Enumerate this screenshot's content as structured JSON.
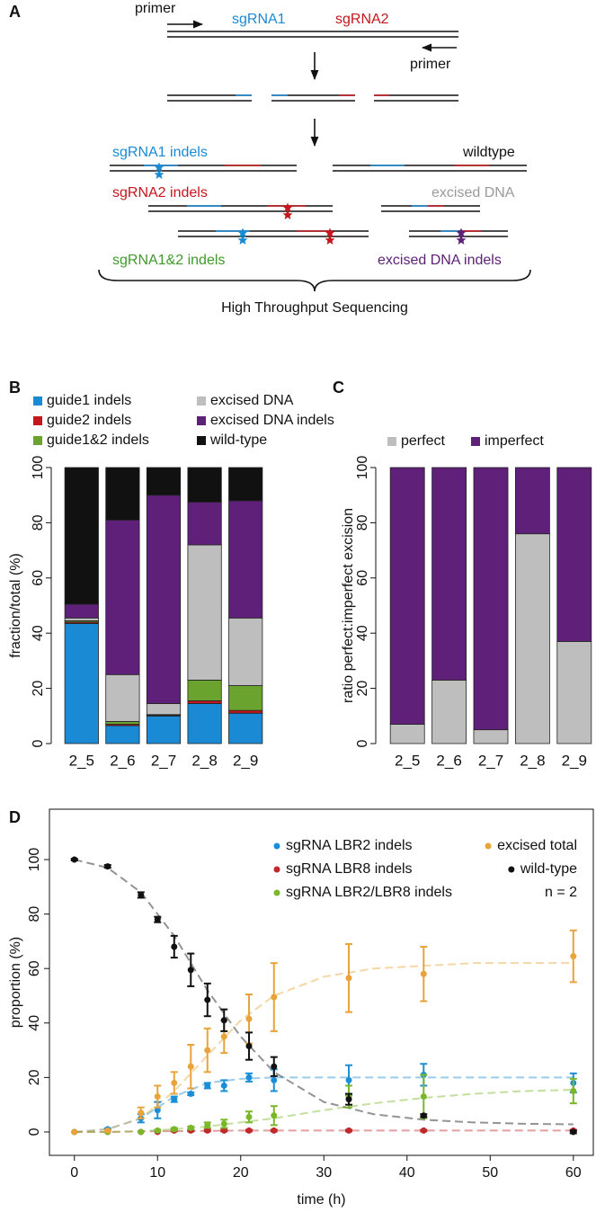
{
  "diagram": {
    "panel_label": "A",
    "primer_forward": "primer",
    "sgrna1": "sgRNA1",
    "sgrna2": "sgRNA2",
    "primer_reverse": "primer",
    "sgrna1_indels": "sgRNA1 indels",
    "wildtype": "wildtype",
    "sgrna2_indels": "sgRNA2 indels",
    "excised_dna": "excised DNA",
    "sgrna12_indels": "sgRNA1&2 indels",
    "excised_dna_indels": "excised DNA indels",
    "sequencing": "High Throughput Sequencing"
  },
  "chart_data": [
    {
      "type": "bar",
      "stacked": true,
      "panel_label": "B",
      "y_label": "fraction/total (%)",
      "categories": [
        "2_5",
        "2_6",
        "2_7",
        "2_8",
        "2_9"
      ],
      "series": [
        {
          "name": "guide1 indels",
          "color": "#1a8ad4",
          "values": [
            43.5,
            6.5,
            10,
            14.5,
            11
          ]
        },
        {
          "name": "guide2 indels",
          "color": "#c4161c",
          "values": [
            0.5,
            0.5,
            0.3,
            1,
            1
          ]
        },
        {
          "name": "guide1&2 indels",
          "color": "#6aa42f",
          "values": [
            0.5,
            1,
            0.2,
            7.5,
            9
          ]
        },
        {
          "name": "excised DNA",
          "color": "#bebebe",
          "values": [
            1,
            17,
            4,
            49,
            24.5
          ]
        },
        {
          "name": "excised DNA indels",
          "color": "#5e2078",
          "values": [
            5,
            56,
            75.5,
            15.5,
            42.5
          ]
        },
        {
          "name": "wild-type",
          "color": "#111111",
          "values": [
            49.5,
            19,
            10,
            12.5,
            12
          ]
        }
      ],
      "ylim": [
        0,
        100
      ],
      "yticks": [
        0,
        20,
        40,
        60,
        80,
        100
      ]
    },
    {
      "type": "bar",
      "stacked": true,
      "panel_label": "C",
      "y_label": "ratio perfect:imperfect excision",
      "categories": [
        "2_5",
        "2_6",
        "2_7",
        "2_8",
        "2_9"
      ],
      "series": [
        {
          "name": "perfect",
          "color": "#bebebe",
          "values": [
            7,
            23,
            5,
            76,
            37
          ]
        },
        {
          "name": "imperfect",
          "color": "#5e2078",
          "values": [
            93,
            77,
            95,
            24,
            63
          ]
        }
      ],
      "ylim": [
        0,
        100
      ],
      "yticks": [
        0,
        20,
        40,
        60,
        80,
        100
      ]
    },
    {
      "type": "scatter",
      "panel_label": "D",
      "x_label": "time (h)",
      "y_label": "proportion (%)",
      "annotation": "n = 2",
      "x": [
        0,
        4,
        8,
        10,
        12,
        14,
        16,
        18,
        21,
        24,
        33,
        42,
        60
      ],
      "fit_x": [
        0,
        4,
        8,
        12,
        16,
        20,
        24,
        30,
        36,
        42,
        48,
        54,
        60
      ],
      "series": [
        {
          "name": "sgRNA LBR2 indels",
          "color": "#1a8fd8",
          "values": [
            0,
            1,
            5,
            8,
            12,
            14,
            17,
            17,
            20,
            19,
            19,
            21,
            18
          ],
          "errors": [
            0,
            0.3,
            1.5,
            3,
            1,
            0.5,
            1,
            2,
            1.5,
            4,
            5.5,
            4,
            3.5
          ],
          "fit": [
            0,
            1,
            5,
            13,
            18,
            19.5,
            20,
            20,
            20,
            20,
            20,
            20,
            20
          ]
        },
        {
          "name": "sgRNA LBR8 indels",
          "color": "#c0282a",
          "values": [
            0,
            0,
            0,
            0,
            0.5,
            0.5,
            0.5,
            0.5,
            0.5,
            0.5,
            0.5,
            0.5,
            0.5
          ],
          "errors": [
            0,
            0,
            0,
            0,
            0.3,
            0.3,
            0.3,
            0.3,
            0.3,
            0.3,
            0.3,
            0.3,
            0.3
          ],
          "fit": [
            0,
            0,
            0.2,
            0.3,
            0.4,
            0.5,
            0.5,
            0.5,
            0.5,
            0.5,
            0.5,
            0.5,
            0.5
          ]
        },
        {
          "name": "sgRNA LBR2/LBR8 indels",
          "color": "#7ab829",
          "values": [
            0,
            0,
            0,
            0.5,
            1,
            1.5,
            2.5,
            3,
            5.5,
            6,
            13,
            13,
            15
          ],
          "errors": [
            0,
            0,
            0,
            0.3,
            0.5,
            0.5,
            1,
            1.5,
            2,
            3.5,
            4,
            8,
            4.5
          ],
          "fit": [
            0,
            0,
            0.3,
            1,
            2,
            3.5,
            5,
            8,
            10.5,
            12.5,
            14,
            15,
            15.5
          ]
        },
        {
          "name": "excised total",
          "color": "#e8a33a",
          "values": [
            0,
            0.5,
            7,
            13,
            18,
            24,
            30,
            35,
            41.5,
            49.5,
            56.5,
            58,
            64.5
          ],
          "errors": [
            0,
            0.3,
            2,
            4,
            4,
            8,
            8,
            6,
            9,
            12.5,
            12.5,
            10,
            9.5
          ],
          "fit": [
            0,
            1,
            5,
            15,
            28,
            41,
            50,
            57,
            60,
            61,
            62,
            62,
            62
          ]
        },
        {
          "name": "wild-type",
          "color": "#111111",
          "values": [
            100,
            97.5,
            87,
            78,
            68,
            59.5,
            48.5,
            41,
            31.5,
            24,
            12,
            6,
            0
          ],
          "errors": [
            0.3,
            0.5,
            1,
            1,
            4,
            6,
            6,
            4,
            5,
            3.5,
            2,
            0.5,
            0.5
          ],
          "fit": [
            100,
            97,
            88,
            72,
            52,
            35,
            22,
            11,
            6.5,
            4.5,
            3.5,
            3,
            2.8
          ]
        }
      ],
      "xlim": [
        -3,
        62.4
      ],
      "xticks": [
        0,
        10,
        20,
        30,
        40,
        50,
        60
      ],
      "ylim": [
        -8.6,
        118.5
      ],
      "yticks": [
        0,
        20,
        40,
        60,
        80,
        100
      ]
    }
  ]
}
